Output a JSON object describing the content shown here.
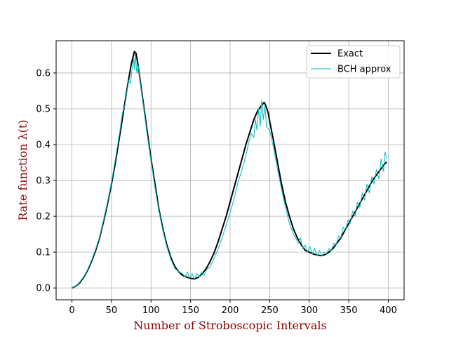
{
  "chart_data": {
    "type": "line",
    "xlabel": "Number of Stroboscopic Intervals",
    "ylabel": "Rate function λ(t)",
    "xlim": [
      -20,
      420
    ],
    "ylim": [
      -0.033,
      0.69
    ],
    "xticks": [
      0,
      50,
      100,
      150,
      200,
      250,
      300,
      350,
      400
    ],
    "yticks": [
      0.0,
      0.1,
      0.2,
      0.3,
      0.4,
      0.5,
      0.6
    ],
    "grid": true,
    "legend_position": "top-right",
    "series": [
      {
        "name": "Exact",
        "color": "#000000",
        "x": [
          0,
          5,
          10,
          15,
          20,
          25,
          30,
          35,
          40,
          45,
          50,
          55,
          60,
          65,
          70,
          75,
          79,
          81,
          83,
          85,
          90,
          95,
          100,
          105,
          110,
          115,
          120,
          125,
          130,
          135,
          140,
          145,
          150,
          155,
          160,
          165,
          170,
          175,
          180,
          185,
          190,
          195,
          200,
          205,
          210,
          215,
          220,
          225,
          230,
          235,
          240,
          243,
          245,
          248,
          250,
          255,
          260,
          265,
          270,
          275,
          280,
          285,
          290,
          295,
          300,
          305,
          310,
          315,
          320,
          325,
          330,
          335,
          340,
          345,
          350,
          355,
          360,
          365,
          370,
          375,
          380,
          385,
          390,
          395,
          398
        ],
        "values": [
          0.0,
          0.005,
          0.015,
          0.03,
          0.05,
          0.075,
          0.105,
          0.14,
          0.185,
          0.235,
          0.29,
          0.35,
          0.42,
          0.49,
          0.56,
          0.625,
          0.66,
          0.655,
          0.63,
          0.6,
          0.52,
          0.44,
          0.36,
          0.29,
          0.22,
          0.165,
          0.12,
          0.085,
          0.06,
          0.045,
          0.035,
          0.03,
          0.027,
          0.025,
          0.03,
          0.04,
          0.055,
          0.075,
          0.1,
          0.13,
          0.165,
          0.2,
          0.24,
          0.28,
          0.32,
          0.36,
          0.4,
          0.435,
          0.47,
          0.495,
          0.51,
          0.518,
          0.51,
          0.49,
          0.465,
          0.41,
          0.35,
          0.29,
          0.24,
          0.2,
          0.165,
          0.14,
          0.12,
          0.105,
          0.1,
          0.095,
          0.092,
          0.09,
          0.093,
          0.1,
          0.11,
          0.125,
          0.14,
          0.16,
          0.18,
          0.2,
          0.22,
          0.24,
          0.26,
          0.28,
          0.3,
          0.315,
          0.33,
          0.345,
          0.352
        ]
      },
      {
        "name": "BCH approx",
        "color": "#00bfbf",
        "x": [
          0,
          5,
          10,
          15,
          20,
          25,
          30,
          35,
          40,
          45,
          50,
          55,
          60,
          64,
          67,
          70,
          72,
          74,
          76,
          78,
          79,
          80,
          82,
          84,
          86,
          90,
          95,
          100,
          105,
          110,
          115,
          120,
          125,
          130,
          135,
          140,
          143,
          146,
          149,
          152,
          155,
          158,
          161,
          164,
          167,
          170,
          175,
          180,
          185,
          190,
          195,
          200,
          205,
          210,
          215,
          220,
          224,
          227,
          230,
          232,
          234,
          236,
          238,
          240,
          242,
          244,
          246,
          250,
          255,
          260,
          265,
          270,
          275,
          280,
          283,
          286,
          289,
          292,
          295,
          298,
          301,
          304,
          307,
          310,
          313,
          316,
          319,
          322,
          325,
          328,
          331,
          334,
          337,
          340,
          343,
          346,
          349,
          352,
          355,
          358,
          361,
          364,
          367,
          370,
          373,
          376,
          379,
          382,
          385,
          388,
          391,
          394,
          396,
          398
        ],
        "values": [
          0.0,
          0.005,
          0.017,
          0.032,
          0.052,
          0.078,
          0.108,
          0.143,
          0.19,
          0.24,
          0.295,
          0.36,
          0.43,
          0.49,
          0.51,
          0.555,
          0.58,
          0.57,
          0.61,
          0.64,
          0.61,
          0.655,
          0.6,
          0.62,
          0.58,
          0.515,
          0.43,
          0.355,
          0.28,
          0.215,
          0.16,
          0.115,
          0.08,
          0.055,
          0.045,
          0.04,
          0.03,
          0.045,
          0.028,
          0.04,
          0.025,
          0.04,
          0.03,
          0.045,
          0.035,
          0.05,
          0.06,
          0.085,
          0.11,
          0.14,
          0.175,
          0.21,
          0.25,
          0.295,
          0.33,
          0.37,
          0.41,
          0.43,
          0.42,
          0.47,
          0.44,
          0.5,
          0.45,
          0.525,
          0.47,
          0.51,
          0.45,
          0.44,
          0.39,
          0.33,
          0.275,
          0.225,
          0.18,
          0.15,
          0.14,
          0.125,
          0.14,
          0.11,
          0.12,
          0.1,
          0.115,
          0.095,
          0.11,
          0.09,
          0.105,
          0.09,
          0.1,
          0.095,
          0.11,
          0.105,
          0.125,
          0.12,
          0.145,
          0.14,
          0.17,
          0.16,
          0.19,
          0.18,
          0.215,
          0.2,
          0.24,
          0.225,
          0.265,
          0.245,
          0.29,
          0.265,
          0.31,
          0.29,
          0.33,
          0.305,
          0.36,
          0.325,
          0.38,
          0.36
        ]
      }
    ]
  }
}
